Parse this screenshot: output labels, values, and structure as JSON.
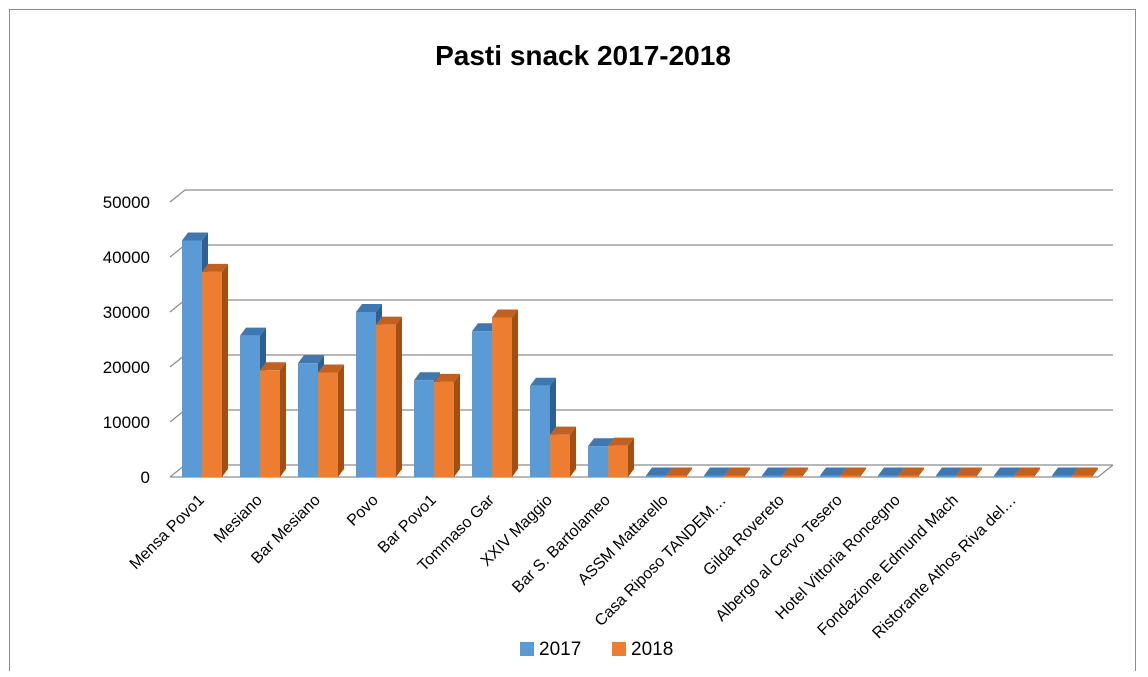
{
  "chart_data": {
    "type": "bar",
    "title": "Pasti snack 2017-2018",
    "xlabel": "",
    "ylabel": "",
    "ylim": [
      0,
      50000
    ],
    "yticks": [
      0,
      10000,
      20000,
      30000,
      40000,
      50000
    ],
    "grid": true,
    "legend": "bottom",
    "categories": [
      "Mensa Povo1",
      "Mesiano",
      "Bar Mesiano",
      "Povo",
      "Bar Povo1",
      "Tommaso Gar",
      "XXIV Maggio",
      "Bar S. Bartolameo",
      "ASSM Mattarello",
      "Casa Riposo TANDEM…",
      "Gilda Rovereto",
      "Albergo al Cervo Tesero",
      "Hotel Vittoria Roncegno",
      "Fondazione  Edmund Mach",
      "Ristorante Athos Riva del…",
      ""
    ],
    "series": [
      {
        "name": "2017",
        "color": "#5B9BD5",
        "values": [
          43000,
          25700,
          20700,
          30000,
          17600,
          26500,
          16600,
          5600,
          50,
          50,
          50,
          50,
          50,
          50,
          50,
          50
        ]
      },
      {
        "name": "2018",
        "color": "#ED7D31",
        "values": [
          37300,
          19400,
          19000,
          27700,
          17300,
          29000,
          7700,
          5700,
          50,
          50,
          50,
          50,
          50,
          50,
          50,
          50
        ]
      }
    ]
  }
}
